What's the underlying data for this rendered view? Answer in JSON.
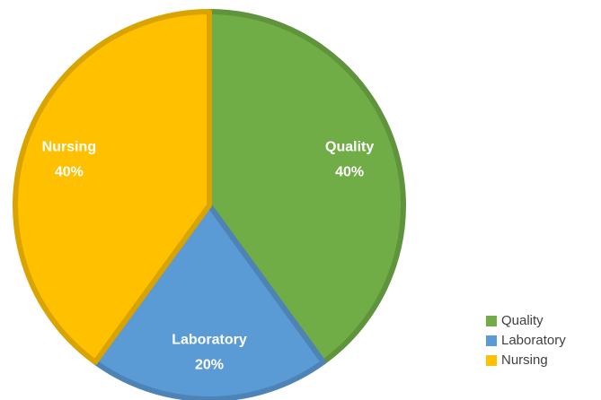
{
  "chart_data": {
    "type": "pie",
    "categories": [
      "Quality",
      "Laboratory",
      "Nursing"
    ],
    "values": [
      40,
      20,
      40
    ],
    "value_labels": [
      "40%",
      "20%",
      "40%"
    ],
    "colors": [
      "#70ad47",
      "#5b9bd5",
      "#ffc000"
    ],
    "legend": "bottom-right"
  }
}
